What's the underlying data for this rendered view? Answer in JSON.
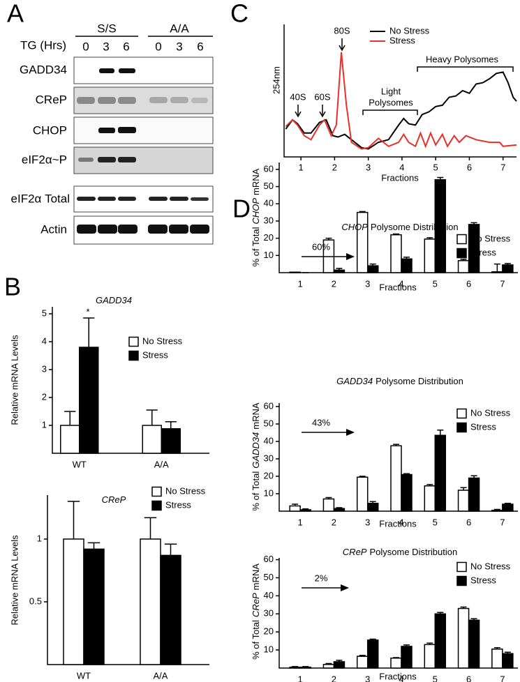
{
  "panel_labels": [
    "A",
    "B",
    "C",
    "D"
  ],
  "blot": {
    "group_labels": [
      "S/S",
      "A/A"
    ],
    "treatment_label": "TG (Hrs)",
    "timepoints": [
      "0",
      "3",
      "6",
      "0",
      "3",
      "6"
    ],
    "row_labels": [
      "GADD34",
      "CReP",
      "CHOP",
      "eIF2α~P",
      "eIF2α Total",
      "Actin"
    ]
  },
  "chart_data": [
    {
      "type": "line",
      "ylabel": "254nm",
      "xlabel": "Fractions",
      "xlim": [
        0.5,
        7.4
      ],
      "ylim": [
        0,
        100
      ],
      "xticks": [
        1,
        2,
        3,
        4,
        5,
        6,
        7
      ],
      "annotations": [
        "40S",
        "60S",
        "80S",
        "Light",
        "Polysomes",
        "Heavy Polysomes"
      ],
      "series": [
        {
          "name": "No Stress",
          "color": "#000000",
          "x": [
            0.55,
            0.75,
            0.9,
            1.1,
            1.3,
            1.55,
            1.75,
            1.95,
            2.1,
            2.3,
            2.5,
            2.8,
            3.0,
            3.3,
            3.6,
            3.9,
            4.05,
            4.2,
            4.4,
            4.6,
            4.8,
            5.0,
            5.2,
            5.4,
            5.6,
            5.8,
            6.0,
            6.2,
            6.4,
            6.6,
            6.8,
            7.0,
            7.15,
            7.3,
            7.4
          ],
          "values": [
            21,
            28,
            25,
            18,
            18,
            26,
            28,
            16,
            15,
            17,
            13,
            7,
            6,
            11,
            13,
            24,
            29,
            25,
            24,
            32,
            34,
            38,
            39,
            45,
            46,
            50,
            48,
            55,
            56,
            59,
            63,
            64,
            56,
            45,
            42
          ]
        },
        {
          "name": "Stress",
          "color": "#e8302a",
          "x": [
            0.55,
            0.75,
            0.9,
            1.1,
            1.3,
            1.55,
            1.7,
            1.9,
            2.05,
            2.2,
            2.35,
            2.5,
            2.8,
            3.0,
            3.3,
            3.6,
            3.9,
            4.05,
            4.2,
            4.4,
            4.55,
            4.7,
            4.85,
            5.0,
            5.2,
            5.35,
            5.55,
            5.7,
            5.9,
            6.2,
            6.6,
            6.9,
            7.0,
            7.4
          ],
          "values": [
            23,
            28,
            24,
            16,
            13,
            24,
            28,
            16,
            24,
            79,
            39,
            11,
            6,
            7,
            14,
            8,
            11,
            17,
            11,
            8,
            18,
            8,
            18,
            9,
            17,
            8,
            16,
            11,
            16,
            13,
            11,
            11,
            8,
            9
          ]
        }
      ]
    },
    {
      "type": "bar",
      "title": {
        "italic": "GADD34"
      },
      "ylabel": "Relative mRNA Levels",
      "categories": [
        "WT",
        "A/A"
      ],
      "ylim": [
        0,
        5.25
      ],
      "yticks": [
        1,
        2,
        3,
        4,
        5
      ],
      "annotations": [
        "*"
      ],
      "series": [
        {
          "name": "No Stress",
          "color": "#ffffff",
          "values": [
            1,
            1
          ],
          "errors": [
            0.5,
            0.55
          ]
        },
        {
          "name": "Stress",
          "color": "#000000",
          "values": [
            3.8,
            0.88
          ],
          "errors": [
            1.05,
            0.25
          ]
        }
      ]
    },
    {
      "type": "bar",
      "title": {
        "italic": "CReP"
      },
      "ylabel": "Relative mRNA Levels",
      "categories": [
        "WT",
        "A/A"
      ],
      "ylim": [
        0,
        1.35
      ],
      "yticks": [
        0.5,
        1
      ],
      "series": [
        {
          "name": "No Stress",
          "color": "#ffffff",
          "values": [
            1,
            1
          ],
          "errors": [
            0.3,
            0.17
          ]
        },
        {
          "name": "Stress",
          "color": "#000000",
          "values": [
            0.92,
            0.87
          ],
          "errors": [
            0.05,
            0.09
          ]
        }
      ]
    },
    {
      "type": "bar",
      "title": {
        "italic": "CHOP",
        "text": "Polysome Distribution"
      },
      "ylabel": {
        "text": "% of Total",
        "italic": "CHOP",
        "suffix": "mRNA"
      },
      "xlabel": "Fractions",
      "categories": [
        "1",
        "2",
        "3",
        "4",
        "5",
        "6",
        "7"
      ],
      "ylim": [
        0,
        64
      ],
      "yticks": [
        10,
        20,
        30,
        40,
        50,
        60
      ],
      "annotations": [
        "60%"
      ],
      "series": [
        {
          "name": "No Stress",
          "color": "#ffffff",
          "values": [
            0.3,
            19,
            35,
            22,
            19.5,
            7,
            0.5
          ],
          "errors": [
            0,
            1,
            0.5,
            0.5,
            0.8,
            0.8,
            4.5
          ]
        },
        {
          "name": "Stress",
          "color": "#000000",
          "values": [
            0,
            1.5,
            4,
            8,
            54,
            28,
            4.5
          ],
          "errors": [
            0,
            1,
            1,
            1,
            1.3,
            1,
            0.8
          ]
        }
      ]
    },
    {
      "type": "bar",
      "title": {
        "italic": "GADD34",
        "text": "Polysome Distribution"
      },
      "ylabel": {
        "text": "% of Total",
        "italic": "GADD34",
        "suffix": "mRNA"
      },
      "xlabel": "Fractions",
      "categories": [
        "1",
        "2",
        "3",
        "4",
        "5",
        "6",
        "7"
      ],
      "ylim": [
        0,
        62
      ],
      "yticks": [
        10,
        20,
        30,
        40,
        50,
        60
      ],
      "annotations": [
        "43%"
      ],
      "series": [
        {
          "name": "No Stress",
          "color": "#ffffff",
          "values": [
            3,
            7,
            19.5,
            37.5,
            14.5,
            12,
            0.5
          ],
          "errors": [
            1,
            0.8,
            0.5,
            0.8,
            0.8,
            1.5,
            0.5
          ]
        },
        {
          "name": "Stress",
          "color": "#000000",
          "values": [
            0.8,
            1.5,
            4.5,
            21,
            43.5,
            19,
            4
          ],
          "errors": [
            0.5,
            0.5,
            1,
            0.5,
            3,
            1.3,
            0.5
          ]
        }
      ]
    },
    {
      "type": "bar",
      "title": {
        "italic": "CReP",
        "text": "Polysome Distribution"
      },
      "ylabel": {
        "text": "% of Total",
        "italic": "CReP",
        "suffix": "mRNA"
      },
      "xlabel": "Fractions",
      "categories": [
        "1",
        "2",
        "3",
        "4",
        "5",
        "6",
        "7"
      ],
      "ylim": [
        0,
        61
      ],
      "yticks": [
        10,
        20,
        30,
        40,
        50,
        60
      ],
      "annotations": [
        "2%"
      ],
      "series": [
        {
          "name": "No Stress",
          "color": "#ffffff",
          "values": [
            0.5,
            2,
            6.5,
            5.5,
            13,
            33,
            10.5
          ],
          "errors": [
            0.3,
            0.5,
            0.5,
            0.3,
            0.8,
            0.8,
            0.8
          ]
        },
        {
          "name": "Stress",
          "color": "#000000",
          "values": [
            0.5,
            3.5,
            15.5,
            12,
            30,
            26.5,
            8
          ],
          "errors": [
            0.3,
            0.8,
            0.5,
            0.8,
            0.8,
            0.8,
            0.8
          ]
        }
      ]
    }
  ]
}
